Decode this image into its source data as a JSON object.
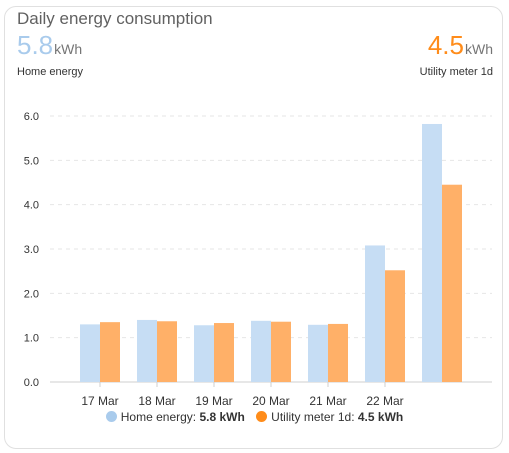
{
  "card": {
    "title": "Daily energy consumption",
    "stats": [
      {
        "value": "5.8",
        "unit": "kWh",
        "name": "Home energy",
        "color": "#a9cbec"
      },
      {
        "value": "4.5",
        "unit": "kWh",
        "name": "Utility meter 1d",
        "color": "#ff8c1a"
      }
    ]
  },
  "legend": [
    {
      "name": "Home energy",
      "value": "5.8 kWh",
      "color": "#a9cbec"
    },
    {
      "name": "Utility meter 1d",
      "value": "4.5 kWh",
      "color": "#ff8c1a"
    }
  ],
  "chart_data": {
    "type": "bar",
    "categories": [
      "17 Mar",
      "18 Mar",
      "19 Mar",
      "20 Mar",
      "21 Mar",
      "22 Mar",
      ""
    ],
    "series": [
      {
        "name": "Home energy",
        "values": [
          1.3,
          1.4,
          1.28,
          1.38,
          1.29,
          3.08,
          5.82
        ],
        "color": "#c6ddf4"
      },
      {
        "name": "Utility meter 1d",
        "values": [
          1.35,
          1.37,
          1.33,
          1.36,
          1.31,
          2.52,
          4.45
        ],
        "color": "#ffb068"
      }
    ],
    "yticks": [
      "0.0",
      "1.0",
      "2.0",
      "3.0",
      "4.0",
      "5.0",
      "6.0"
    ],
    "ylim": [
      0,
      6
    ],
    "grid": true,
    "legend_position": "bottom"
  }
}
